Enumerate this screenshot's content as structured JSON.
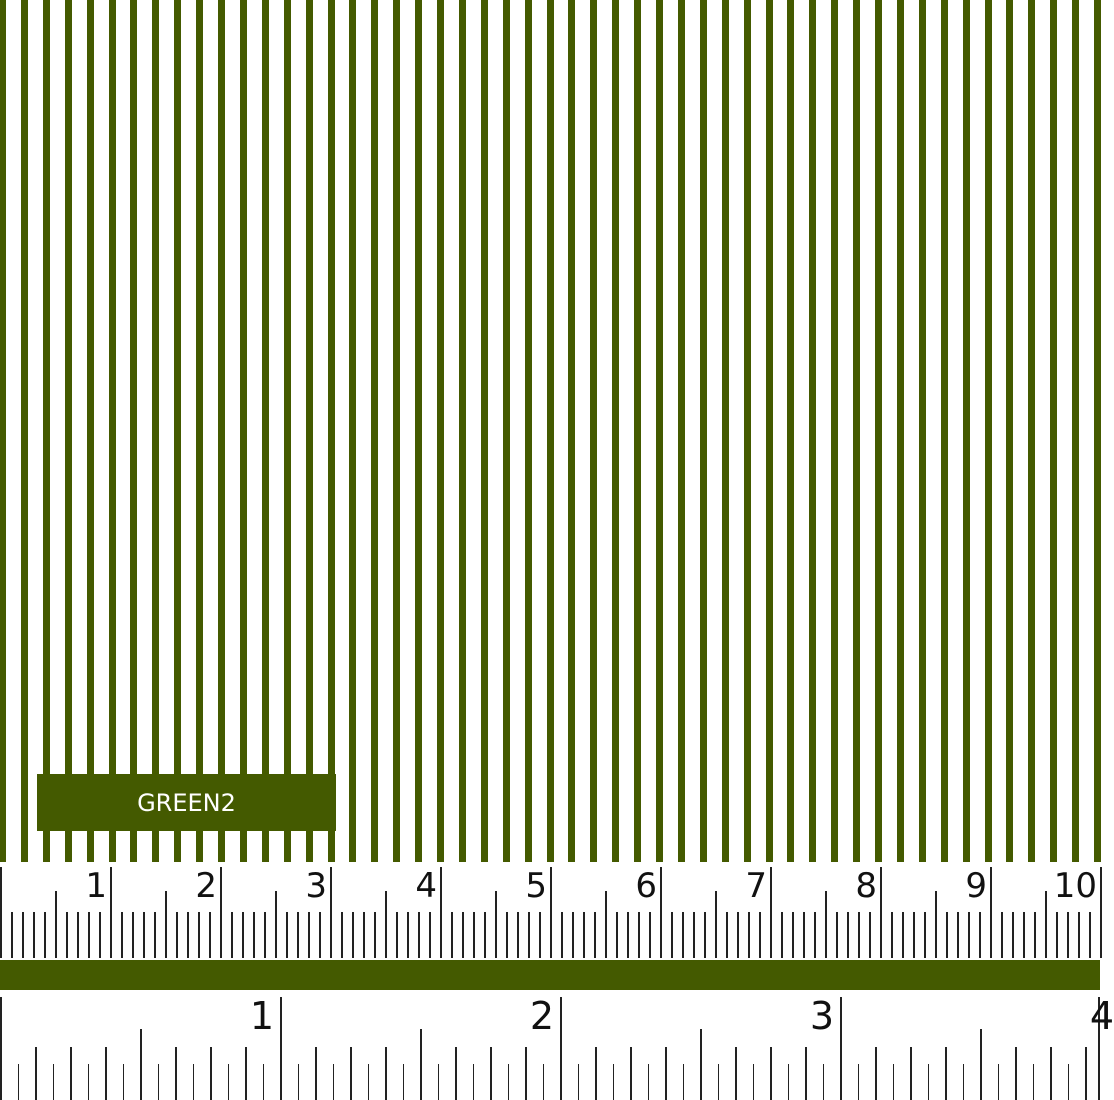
{
  "swatch": {
    "label": "GREEN2",
    "stripe_color": "#445a00",
    "background_color": "#ffffff"
  },
  "cm_ruler": {
    "labels": [
      "1",
      "2",
      "3",
      "4",
      "5",
      "6",
      "7",
      "8",
      "9",
      "10"
    ]
  },
  "inch_ruler": {
    "labels": [
      "1",
      "2",
      "3",
      "4"
    ]
  }
}
